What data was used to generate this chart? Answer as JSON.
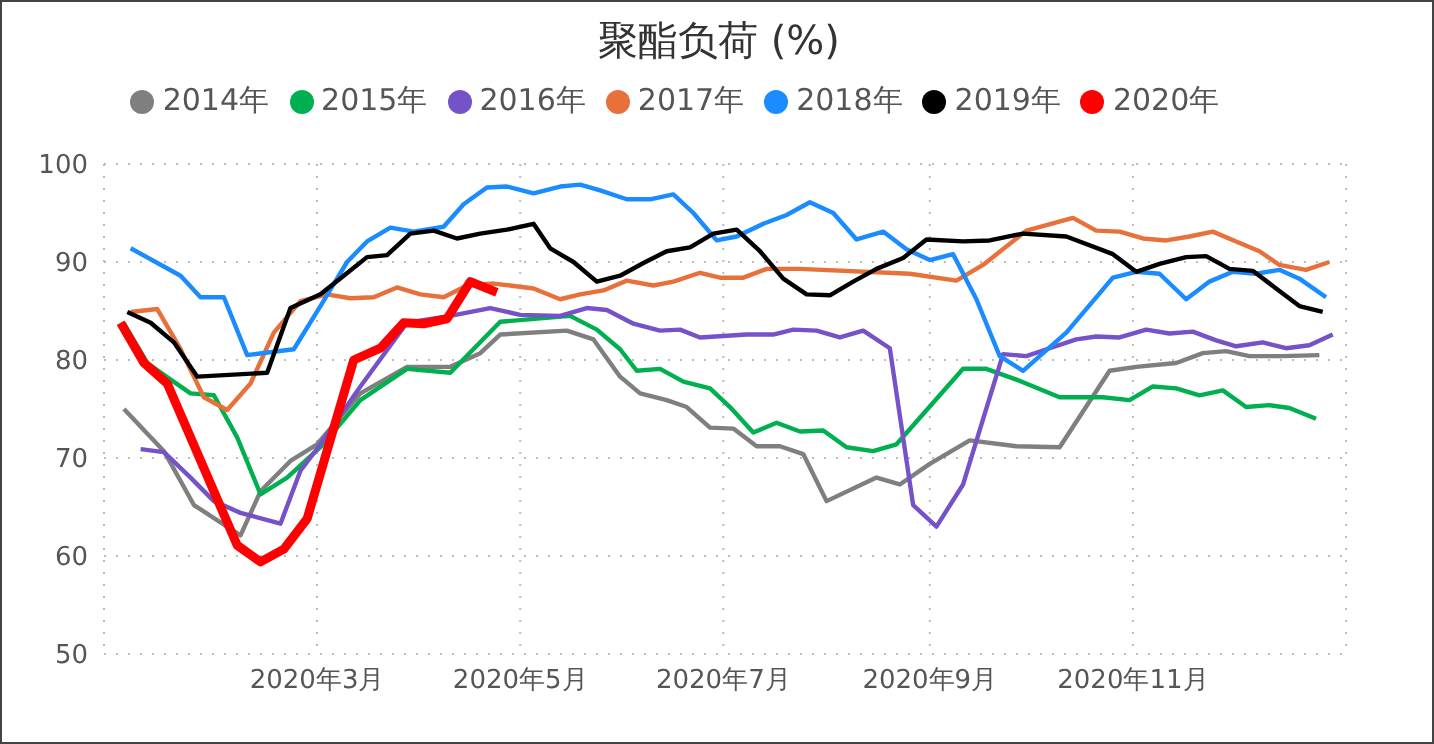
{
  "chart_data": {
    "type": "line",
    "title": "聚酯负荷 (%)",
    "legend": "top",
    "grid": true,
    "marker": "none",
    "line_style": "solid",
    "xlim": [
      "2019-12-28",
      "2021-01-04"
    ],
    "xticks": [
      {
        "value": "2020-03-01",
        "label": "2020年3月"
      },
      {
        "value": "2020-05-01",
        "label": "2020年5月"
      },
      {
        "value": "2020-07-01",
        "label": "2020年7月"
      },
      {
        "value": "2020-09-01",
        "label": "2020年9月"
      },
      {
        "value": "2020-11-01",
        "label": "2020年11月"
      }
    ],
    "ylim": [
      50,
      100
    ],
    "yticks": [
      50,
      60,
      70,
      80,
      90,
      100
    ],
    "series": [
      {
        "name": "2014年",
        "color": "#7f7f7f",
        "x": [
          "2020-01-03",
          "2020-01-15",
          "2020-01-24",
          "2020-02-07",
          "2020-02-13",
          "2020-02-22",
          "2020-03-01",
          "2020-03-14",
          "2020-03-28",
          "2020-04-10",
          "2020-04-19",
          "2020-04-25",
          "2020-05-15",
          "2020-05-23",
          "2020-05-31",
          "2020-06-06",
          "2020-06-14",
          "2020-06-20",
          "2020-06-27",
          "2020-07-04",
          "2020-07-11",
          "2020-07-18",
          "2020-07-25",
          "2020-08-01",
          "2020-08-16",
          "2020-08-23",
          "2020-09-01",
          "2020-09-13",
          "2020-09-27",
          "2020-10-10",
          "2020-10-25",
          "2020-11-02",
          "2020-11-14",
          "2020-11-22",
          "2020-11-29",
          "2020-12-06",
          "2020-12-16",
          "2020-12-27"
        ],
        "values": [
          75.0,
          70.7,
          65.2,
          62.1,
          66.6,
          69.7,
          71.4,
          76.6,
          79.3,
          79.3,
          80.7,
          82.6,
          83.0,
          82.1,
          78.3,
          76.6,
          75.9,
          75.2,
          73.1,
          73.0,
          71.2,
          71.2,
          70.4,
          65.6,
          68.0,
          67.3,
          69.4,
          71.8,
          71.2,
          71.1,
          78.9,
          79.3,
          79.7,
          80.7,
          80.9,
          80.4,
          80.4,
          80.5
        ]
      },
      {
        "name": "2015年",
        "color": "#00b050",
        "x": [
          "2020-01-03",
          "2020-01-10",
          "2020-01-17",
          "2020-01-23",
          "2020-01-30",
          "2020-02-06",
          "2020-02-13",
          "2020-02-21",
          "2020-03-02",
          "2020-03-14",
          "2020-03-28",
          "2020-04-10",
          "2020-04-25",
          "2020-05-16",
          "2020-05-24",
          "2020-05-31",
          "2020-06-05",
          "2020-06-12",
          "2020-06-19",
          "2020-06-27",
          "2020-07-03",
          "2020-07-10",
          "2020-07-17",
          "2020-07-24",
          "2020-07-31",
          "2020-08-07",
          "2020-08-15",
          "2020-08-22",
          "2020-09-11",
          "2020-09-18",
          "2020-09-27",
          "2020-10-10",
          "2020-10-23",
          "2020-10-31",
          "2020-11-07",
          "2020-11-14",
          "2020-11-21",
          "2020-11-28",
          "2020-12-05",
          "2020-12-12",
          "2020-12-18",
          "2020-12-26"
        ],
        "values": [
          83.7,
          79.7,
          78.0,
          76.6,
          76.4,
          72.1,
          66.3,
          68.0,
          71.1,
          75.9,
          79.1,
          78.7,
          83.9,
          84.5,
          83.1,
          81.1,
          78.9,
          79.1,
          77.8,
          77.1,
          75.2,
          72.6,
          73.6,
          72.7,
          72.8,
          71.1,
          70.7,
          71.4,
          79.1,
          79.1,
          78.0,
          76.2,
          76.2,
          75.9,
          77.3,
          77.1,
          76.4,
          76.9,
          75.2,
          75.4,
          75.1,
          74.0
        ]
      },
      {
        "name": "2016年",
        "color": "#7552c8",
        "x": [
          "2020-01-08",
          "2020-01-15",
          "2020-01-23",
          "2020-01-30",
          "2020-02-07",
          "2020-02-19",
          "2020-02-25",
          "2020-03-02",
          "2020-03-14",
          "2020-03-28",
          "2020-04-10",
          "2020-04-22",
          "2020-05-01",
          "2020-05-13",
          "2020-05-21",
          "2020-05-27",
          "2020-06-04",
          "2020-06-12",
          "2020-06-18",
          "2020-06-24",
          "2020-07-08",
          "2020-07-16",
          "2020-07-22",
          "2020-07-29",
          "2020-08-05",
          "2020-08-12",
          "2020-08-20",
          "2020-08-27",
          "2020-09-03",
          "2020-09-11",
          "2020-09-23",
          "2020-09-30",
          "2020-10-07",
          "2020-10-15",
          "2020-10-21",
          "2020-10-28",
          "2020-11-05",
          "2020-11-12",
          "2020-11-19",
          "2020-11-26",
          "2020-12-02",
          "2020-12-10",
          "2020-12-17",
          "2020-12-24",
          "2020-12-31"
        ],
        "values": [
          70.9,
          70.6,
          68.0,
          65.6,
          64.4,
          63.3,
          68.7,
          71.4,
          77.3,
          83.8,
          84.5,
          85.3,
          84.6,
          84.5,
          85.3,
          85.1,
          83.7,
          83.0,
          83.1,
          82.3,
          82.6,
          82.6,
          83.1,
          83.0,
          82.3,
          83.0,
          81.2,
          65.2,
          63.0,
          67.3,
          80.6,
          80.4,
          81.2,
          82.1,
          82.4,
          82.3,
          83.1,
          82.7,
          82.9,
          82.0,
          81.4,
          81.8,
          81.2,
          81.5,
          82.6
        ]
      },
      {
        "name": "2017年",
        "color": "#e8703a",
        "x": [
          "2020-01-05",
          "2020-01-13",
          "2020-01-20",
          "2020-01-27",
          "2020-02-03",
          "2020-02-10",
          "2020-02-17",
          "2020-02-25",
          "2020-03-04",
          "2020-03-11",
          "2020-03-18",
          "2020-03-25",
          "2020-04-01",
          "2020-04-08",
          "2020-04-15",
          "2020-04-23",
          "2020-05-05",
          "2020-05-13",
          "2020-05-19",
          "2020-05-26",
          "2020-06-02",
          "2020-06-10",
          "2020-06-16",
          "2020-06-24",
          "2020-06-30",
          "2020-07-07",
          "2020-07-14",
          "2020-07-24",
          "2020-08-26",
          "2020-09-09",
          "2020-09-17",
          "2020-09-30",
          "2020-10-14",
          "2020-10-21",
          "2020-10-28",
          "2020-11-04",
          "2020-11-11",
          "2020-11-18",
          "2020-11-25",
          "2020-12-02",
          "2020-12-09",
          "2020-12-15",
          "2020-12-23",
          "2020-12-30"
        ],
        "values": [
          84.9,
          85.2,
          81.1,
          76.2,
          74.9,
          77.6,
          82.8,
          86.0,
          86.7,
          86.3,
          86.4,
          87.4,
          86.7,
          86.4,
          87.6,
          87.8,
          87.3,
          86.2,
          86.7,
          87.1,
          88.1,
          87.6,
          88.0,
          88.9,
          88.4,
          88.4,
          89.3,
          89.3,
          88.8,
          88.1,
          89.7,
          93.2,
          94.5,
          93.2,
          93.1,
          92.4,
          92.2,
          92.6,
          93.1,
          92.1,
          91.1,
          89.7,
          89.2,
          90.0
        ]
      },
      {
        "name": "2018年",
        "color": "#1a8cff",
        "x": [
          "2020-01-05",
          "2020-01-20",
          "2020-01-26",
          "2020-02-02",
          "2020-02-09",
          "2020-02-23",
          "2020-03-02",
          "2020-03-10",
          "2020-03-16",
          "2020-03-23",
          "2020-03-30",
          "2020-04-08",
          "2020-04-14",
          "2020-04-21",
          "2020-04-27",
          "2020-05-05",
          "2020-05-13",
          "2020-05-19",
          "2020-05-25",
          "2020-06-02",
          "2020-06-09",
          "2020-06-16",
          "2020-06-22",
          "2020-06-29",
          "2020-07-05",
          "2020-07-13",
          "2020-07-20",
          "2020-07-27",
          "2020-08-03",
          "2020-08-10",
          "2020-08-18",
          "2020-08-25",
          "2020-09-01",
          "2020-09-08",
          "2020-09-15",
          "2020-09-22",
          "2020-09-29",
          "2020-10-12",
          "2020-10-26",
          "2020-11-02",
          "2020-11-09",
          "2020-11-17",
          "2020-11-24",
          "2020-12-01",
          "2020-12-08",
          "2020-12-15",
          "2020-12-21",
          "2020-12-29"
        ],
        "values": [
          91.4,
          88.6,
          86.4,
          86.4,
          80.5,
          81.1,
          85.5,
          90.0,
          92.1,
          93.5,
          93.1,
          93.6,
          95.9,
          97.6,
          97.7,
          97.0,
          97.7,
          97.9,
          97.3,
          96.4,
          96.4,
          96.9,
          95.0,
          92.2,
          92.6,
          93.9,
          94.8,
          96.1,
          95.0,
          92.3,
          93.1,
          91.3,
          90.2,
          90.8,
          86.2,
          80.4,
          78.9,
          82.8,
          88.4,
          89.0,
          88.8,
          86.2,
          88.0,
          89.0,
          88.8,
          89.2,
          88.3,
          86.4
        ]
      },
      {
        "name": "2019年",
        "color": "#000000",
        "x": [
          "2020-01-04",
          "2020-01-11",
          "2020-01-18",
          "2020-01-25",
          "2020-02-15",
          "2020-02-22",
          "2020-03-02",
          "2020-03-09",
          "2020-03-16",
          "2020-03-22",
          "2020-03-29",
          "2020-04-05",
          "2020-04-12",
          "2020-04-19",
          "2020-04-27",
          "2020-05-05",
          "2020-05-10",
          "2020-05-17",
          "2020-05-24",
          "2020-05-31",
          "2020-06-07",
          "2020-06-14",
          "2020-06-21",
          "2020-06-28",
          "2020-07-05",
          "2020-07-12",
          "2020-07-19",
          "2020-07-26",
          "2020-08-02",
          "2020-08-09",
          "2020-08-16",
          "2020-08-24",
          "2020-08-31",
          "2020-09-11",
          "2020-09-19",
          "2020-09-29",
          "2020-10-12",
          "2020-10-26",
          "2020-11-02",
          "2020-11-09",
          "2020-11-17",
          "2020-11-23",
          "2020-11-30",
          "2020-12-07",
          "2020-12-14",
          "2020-12-21",
          "2020-12-28"
        ],
        "values": [
          84.9,
          83.8,
          81.8,
          78.3,
          78.7,
          85.3,
          86.7,
          88.6,
          90.5,
          90.7,
          92.9,
          93.2,
          92.4,
          92.9,
          93.3,
          93.9,
          91.4,
          90.0,
          88.0,
          88.6,
          89.9,
          91.1,
          91.5,
          92.9,
          93.3,
          91.1,
          88.3,
          86.7,
          86.6,
          88.0,
          89.3,
          90.4,
          92.3,
          92.1,
          92.2,
          92.9,
          92.6,
          90.8,
          89.0,
          89.8,
          90.5,
          90.6,
          89.3,
          89.1,
          87.3,
          85.5,
          84.9
        ]
      },
      {
        "name": "2020年",
        "color": "#ff0000",
        "x": [
          "2020-01-02",
          "2020-01-09",
          "2020-01-16",
          "2020-02-06",
          "2020-02-13",
          "2020-02-20",
          "2020-02-27",
          "2020-03-12",
          "2020-03-20",
          "2020-03-27",
          "2020-04-02",
          "2020-04-09",
          "2020-04-16",
          "2020-04-24"
        ],
        "values": [
          83.8,
          79.7,
          77.6,
          61.1,
          59.4,
          60.7,
          63.8,
          80.0,
          81.2,
          83.8,
          83.7,
          84.2,
          88.0,
          86.9
        ]
      }
    ]
  }
}
